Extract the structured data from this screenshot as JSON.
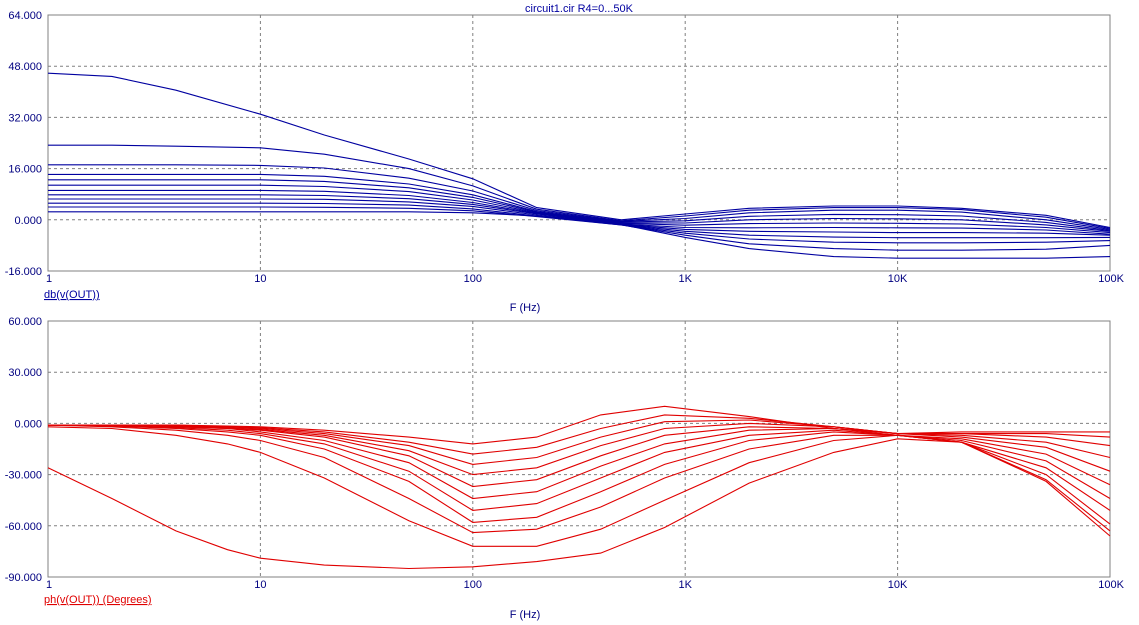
{
  "chart_data": [
    {
      "type": "line",
      "title": "circuit1.cir R4=0...50K",
      "xlabel": "F (Hz)",
      "ylabel": "db(v(OUT))",
      "x_scale": "log",
      "xlim": [
        1,
        100000
      ],
      "ylim": [
        -16,
        64
      ],
      "x_tick_labels": [
        "1",
        "10",
        "100",
        "1K",
        "10K",
        "100K"
      ],
      "y_tick_labels": [
        "64.000",
        "48.000",
        "32.000",
        "16.000",
        "0.000",
        "-16.000"
      ],
      "grid": true,
      "color": "#0000a0",
      "x": [
        1,
        2,
        4,
        10,
        20,
        50,
        100,
        200,
        500,
        1000,
        2000,
        5000,
        10000,
        20000,
        50000,
        100000
      ],
      "series": [
        {
          "values": [
            2.5,
            2.5,
            2.5,
            2.5,
            2.5,
            2.5,
            2.2,
            1.2,
            -1.5,
            -5.5,
            -9.0,
            -11.5,
            -12.0,
            -12.0,
            -12.0,
            -11.5
          ]
        },
        {
          "values": [
            4.0,
            4.0,
            4.0,
            4.0,
            3.9,
            3.6,
            2.8,
            1.0,
            -1.6,
            -4.8,
            -7.5,
            -9.0,
            -9.5,
            -9.5,
            -9.2,
            -8.0
          ]
        },
        {
          "values": [
            5.2,
            5.2,
            5.2,
            5.2,
            5.1,
            4.6,
            3.4,
            1.2,
            -1.6,
            -4.2,
            -6.0,
            -7.0,
            -7.2,
            -7.2,
            -7.0,
            -6.5
          ]
        },
        {
          "values": [
            6.5,
            6.5,
            6.5,
            6.5,
            6.4,
            5.6,
            4.2,
            1.5,
            -1.5,
            -3.6,
            -4.8,
            -5.4,
            -5.6,
            -5.6,
            -5.6,
            -5.5
          ]
        },
        {
          "values": [
            7.8,
            7.8,
            7.8,
            7.8,
            7.6,
            6.6,
            4.8,
            1.8,
            -1.4,
            -3.0,
            -3.6,
            -3.8,
            -4.0,
            -4.0,
            -4.2,
            -4.8
          ]
        },
        {
          "values": [
            9.2,
            9.2,
            9.2,
            9.2,
            8.9,
            7.6,
            5.4,
            2.0,
            -1.3,
            -2.4,
            -2.5,
            -2.4,
            -2.5,
            -2.6,
            -3.2,
            -4.5
          ]
        },
        {
          "values": [
            10.8,
            10.8,
            10.8,
            10.8,
            10.4,
            8.8,
            6.2,
            2.2,
            -1.1,
            -1.7,
            -1.2,
            -1.0,
            -1.1,
            -1.3,
            -2.4,
            -4.0
          ]
        },
        {
          "values": [
            12.5,
            12.5,
            12.5,
            12.5,
            12.0,
            10.0,
            7.0,
            2.4,
            -0.9,
            -1.0,
            0.0,
            0.4,
            0.3,
            0.0,
            -1.6,
            -3.6
          ]
        },
        {
          "values": [
            14.2,
            14.2,
            14.2,
            14.2,
            13.6,
            11.2,
            7.8,
            2.6,
            -0.7,
            -0.3,
            1.1,
            1.7,
            1.6,
            1.2,
            -0.8,
            -3.3
          ]
        },
        {
          "values": [
            17.2,
            17.2,
            17.2,
            17.0,
            16.2,
            13.0,
            9.0,
            2.9,
            -0.5,
            0.4,
            2.2,
            3.0,
            3.0,
            2.4,
            0.0,
            -3.0
          ]
        },
        {
          "values": [
            23.3,
            23.3,
            23.0,
            22.5,
            20.5,
            16.0,
            10.6,
            3.3,
            -0.3,
            1.2,
            3.0,
            3.8,
            3.8,
            3.2,
            0.8,
            -2.7
          ]
        },
        {
          "values": [
            45.8,
            44.8,
            40.5,
            33.0,
            26.5,
            19.0,
            12.8,
            3.8,
            0.0,
            1.8,
            3.6,
            4.3,
            4.3,
            3.6,
            1.4,
            -2.4
          ]
        }
      ]
    },
    {
      "type": "line",
      "title": "",
      "xlabel": "F (Hz)",
      "ylabel": "ph(v(OUT)) (Degrees)",
      "x_scale": "log",
      "xlim": [
        1,
        100000
      ],
      "ylim": [
        -90,
        60
      ],
      "x_tick_labels": [
        "1",
        "10",
        "100",
        "1K",
        "10K",
        "100K"
      ],
      "y_tick_labels": [
        "60.000",
        "30.000",
        "0.000",
        "-30.000",
        "-60.000",
        "-90.000"
      ],
      "grid": true,
      "color": "#e00000",
      "x": [
        1,
        2,
        4,
        7,
        10,
        20,
        50,
        100,
        200,
        400,
        800,
        2000,
        5000,
        10000,
        20000,
        50000,
        100000
      ],
      "series": [
        {
          "values": [
            -1,
            -1,
            -1,
            -1.5,
            -2,
            -4,
            -8,
            -12,
            -8,
            5,
            10,
            4,
            -3,
            -6,
            -5,
            -5,
            -5
          ]
        },
        {
          "values": [
            -1,
            -1,
            -1,
            -2,
            -2.5,
            -5,
            -11,
            -18,
            -14,
            -3,
            5,
            3,
            -2,
            -6,
            -6,
            -6,
            -8
          ]
        },
        {
          "values": [
            -1,
            -1,
            -1.5,
            -2,
            -3,
            -6,
            -13,
            -24,
            -20,
            -8,
            1,
            2,
            -2,
            -6,
            -6,
            -8,
            -13
          ]
        },
        {
          "values": [
            -1,
            -1,
            -1.5,
            -2.5,
            -3.5,
            -7,
            -16,
            -30,
            -26,
            -13,
            -3,
            0,
            -2,
            -6,
            -7,
            -11,
            -20
          ]
        },
        {
          "values": [
            -1,
            -1,
            -2,
            -3,
            -4,
            -8,
            -19,
            -37,
            -33,
            -19,
            -7,
            -2,
            -3,
            -6,
            -8,
            -14,
            -28
          ]
        },
        {
          "values": [
            -1,
            -1,
            -2,
            -3,
            -5,
            -10,
            -23,
            -44,
            -40,
            -25,
            -12,
            -4,
            -3,
            -7,
            -9,
            -18,
            -36
          ]
        },
        {
          "values": [
            -1,
            -1.5,
            -2.5,
            -4,
            -6,
            -12,
            -28,
            -51,
            -47,
            -32,
            -17,
            -7,
            -4,
            -7,
            -10,
            -22,
            -44
          ]
        },
        {
          "values": [
            -1,
            -1.5,
            -3,
            -5,
            -7,
            -15,
            -34,
            -58,
            -55,
            -40,
            -24,
            -10,
            -5,
            -7,
            -11,
            -26,
            -51
          ]
        },
        {
          "values": [
            -1,
            -2,
            -4,
            -7,
            -10,
            -20,
            -44,
            -64,
            -62,
            -49,
            -32,
            -15,
            -7,
            -7,
            -11,
            -30,
            -59
          ]
        },
        {
          "values": [
            -2,
            -3,
            -7,
            -12,
            -17,
            -32,
            -57,
            -72,
            -72,
            -62,
            -45,
            -23,
            -10,
            -7,
            -11,
            -33,
            -63
          ]
        },
        {
          "values": [
            -26,
            -44,
            -63,
            -74,
            -79,
            -83,
            -85,
            -84,
            -81,
            -76,
            -61,
            -35,
            -17,
            -9,
            -11,
            -34,
            -66
          ]
        }
      ]
    }
  ]
}
